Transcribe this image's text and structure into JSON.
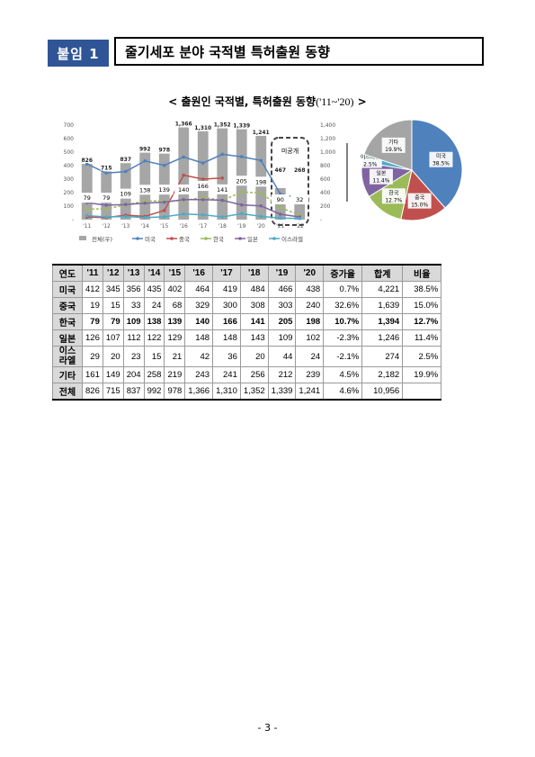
{
  "header": {
    "label": "붙임 1",
    "title": "줄기세포 분야 국적별 특허출원 동향"
  },
  "chart_title": {
    "main": "< 출원인 국적별, 특허출원 동향",
    "range": "('11~'20)",
    "suffix": " >"
  },
  "chart_data": [
    {
      "type": "bar+line",
      "categories": [
        "'11",
        "'12",
        "'13",
        "'14",
        "'15",
        "'16",
        "'17",
        "'18",
        "'19",
        "'20",
        "'21",
        "'22"
      ],
      "y_left": {
        "ylim": [
          0,
          700
        ],
        "ticks": [
          "700",
          "600",
          "500",
          "400",
          "300",
          "200",
          "100",
          "-"
        ]
      },
      "y_right": {
        "ylim": [
          0,
          1400
        ],
        "ticks": [
          "1,400",
          "1,200",
          "1,000",
          "800",
          "600",
          "400",
          "200",
          "-"
        ]
      },
      "series": [
        {
          "name": "전체(우)",
          "kind": "bar",
          "axis": "right",
          "values": [
            826,
            715,
            837,
            992,
            978,
            1366,
            1310,
            1352,
            1339,
            1241,
            467,
            268
          ],
          "labels": [
            "826",
            "715",
            "837",
            "992",
            "978",
            "1,366",
            "1,310",
            "1,352",
            "1,339",
            "1,241",
            "467",
            "268"
          ]
        },
        {
          "name": "미국",
          "kind": "line",
          "axis": "left",
          "values": [
            412,
            345,
            356,
            435,
            402,
            464,
            419,
            484,
            466,
            438,
            190,
            160
          ]
        },
        {
          "name": "중국",
          "kind": "line",
          "axis": "left",
          "values": [
            19,
            15,
            33,
            24,
            68,
            329,
            300,
            308,
            null,
            null,
            null,
            null
          ]
        },
        {
          "name": "한국",
          "kind": "line",
          "axis": "left",
          "values": [
            79,
            79,
            109,
            138,
            139,
            140,
            166,
            141,
            205,
            198,
            90,
            32
          ],
          "labels": [
            "79",
            "79",
            "109",
            "138",
            "139",
            "140",
            "166",
            "141",
            "205",
            "198",
            "90",
            "32"
          ]
        },
        {
          "name": "일본",
          "kind": "line",
          "axis": "left",
          "values": [
            126,
            107,
            112,
            122,
            129,
            148,
            148,
            143,
            109,
            102,
            40,
            20
          ]
        },
        {
          "name": "이스라엘",
          "kind": "line",
          "axis": "left",
          "values": [
            29,
            20,
            23,
            15,
            21,
            42,
            36,
            20,
            44,
            24,
            12,
            8
          ]
        }
      ],
      "annotation": "미공개",
      "legend_placement": "bottom"
    },
    {
      "type": "pie",
      "slices": [
        {
          "name": "미국",
          "label": "미국",
          "pct": "38.5%",
          "value": 38.5,
          "color": "#4f81bd"
        },
        {
          "name": "중국",
          "label": "중국",
          "pct": "15.0%",
          "value": 15.0,
          "color": "#c0504d"
        },
        {
          "name": "한국",
          "label": "한국",
          "pct": "12.7%",
          "value": 12.7,
          "color": "#9bbb59"
        },
        {
          "name": "일본",
          "label": "일본",
          "pct": "11.4%",
          "value": 11.4,
          "color": "#8064a2"
        },
        {
          "name": "이스라엘",
          "label": "이스라엘",
          "pct": "2.5%",
          "value": 2.5,
          "color": "#4bacc6"
        },
        {
          "name": "기타",
          "label": "기타",
          "pct": "19.9%",
          "value": 19.9,
          "color": "#a5a5a5"
        }
      ]
    }
  ],
  "table": {
    "headers": [
      "연도",
      "'11",
      "'12",
      "'13",
      "'14",
      "'15",
      "'16",
      "'17",
      "'18",
      "'19",
      "'20",
      "증가율",
      "합계",
      "비율"
    ],
    "rows": [
      {
        "label": "미국",
        "bold": false,
        "cells": [
          "412",
          "345",
          "356",
          "435",
          "402",
          "464",
          "419",
          "484",
          "466",
          "438",
          "0.7%",
          "4,221",
          "38.5%"
        ]
      },
      {
        "label": "중국",
        "bold": false,
        "cells": [
          "19",
          "15",
          "33",
          "24",
          "68",
          "329",
          "300",
          "308",
          "303",
          "240",
          "32.6%",
          "1,639",
          "15.0%"
        ]
      },
      {
        "label": "한국",
        "bold": true,
        "cells": [
          "79",
          "79",
          "109",
          "138",
          "139",
          "140",
          "166",
          "141",
          "205",
          "198",
          "10.7%",
          "1,394",
          "12.7%"
        ]
      },
      {
        "label": "일본",
        "bold": false,
        "cells": [
          "126",
          "107",
          "112",
          "122",
          "129",
          "148",
          "148",
          "143",
          "109",
          "102",
          "-2.3%",
          "1,246",
          "11.4%"
        ]
      },
      {
        "label": "이스라엘",
        "bold": false,
        "cells": [
          "29",
          "20",
          "23",
          "15",
          "21",
          "42",
          "36",
          "20",
          "44",
          "24",
          "-2.1%",
          "274",
          "2.5%"
        ]
      },
      {
        "label": "기타",
        "bold": false,
        "cells": [
          "161",
          "149",
          "204",
          "258",
          "219",
          "243",
          "241",
          "256",
          "212",
          "239",
          "4.5%",
          "2,182",
          "19.9%"
        ]
      },
      {
        "label": "전체",
        "bold": false,
        "cells": [
          "826",
          "715",
          "837",
          "992",
          "978",
          "1,366",
          "1,310",
          "1,352",
          "1,339",
          "1,241",
          "4.6%",
          "10,956",
          ""
        ]
      }
    ]
  },
  "page_number": "- 3 -"
}
